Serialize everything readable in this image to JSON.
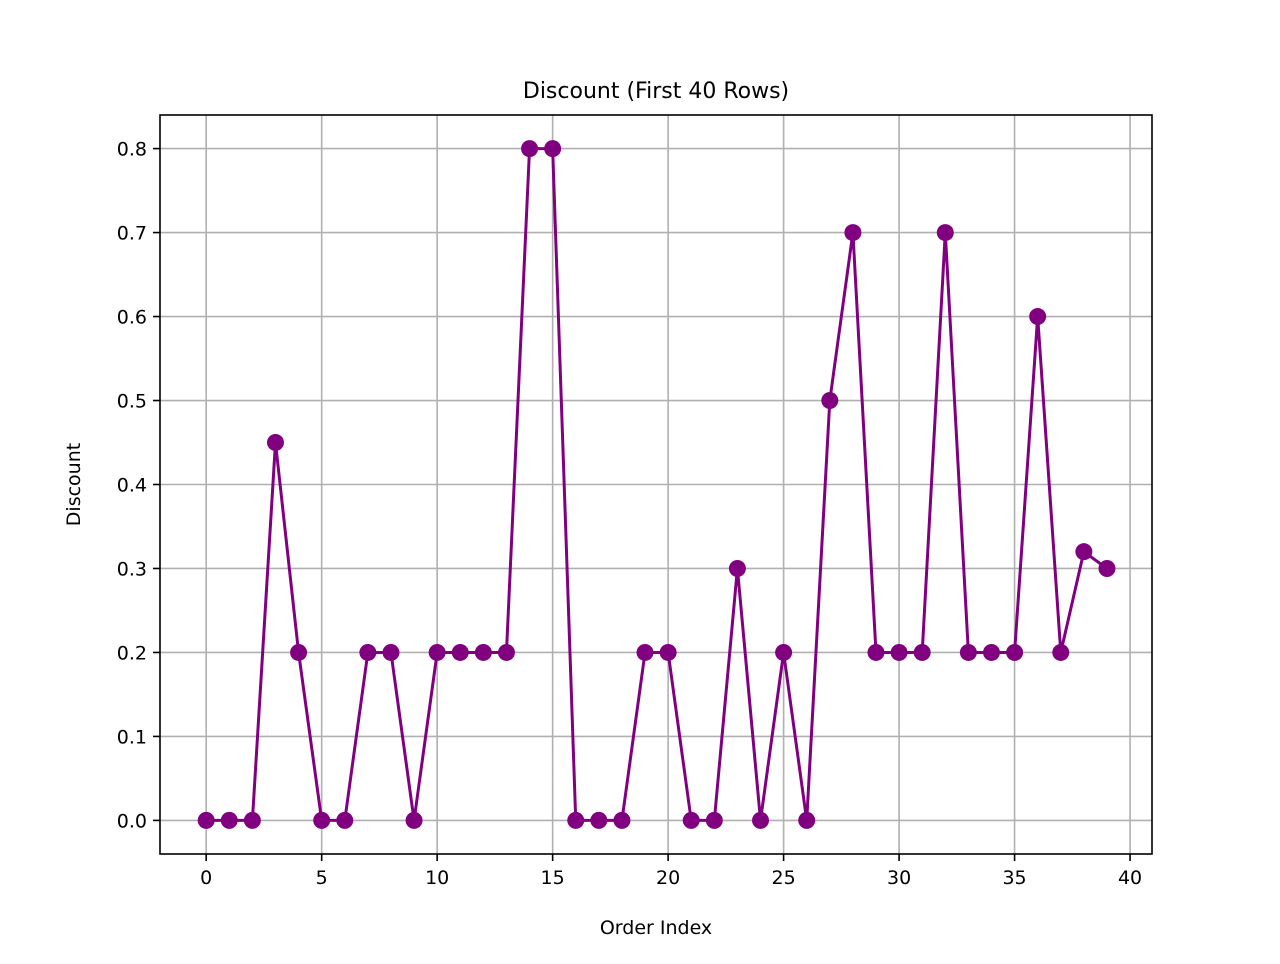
{
  "chart_data": {
    "type": "line",
    "title": "Discount (First 40 Rows)",
    "xlabel": "Order Index",
    "ylabel": "Discount",
    "xlim": [
      -2,
      40.95
    ],
    "ylim": [
      -0.04,
      0.84
    ],
    "x_ticks": [
      0,
      5,
      10,
      15,
      20,
      25,
      30,
      35,
      40
    ],
    "y_ticks": [
      0.0,
      0.1,
      0.2,
      0.3,
      0.4,
      0.5,
      0.6,
      0.7,
      0.8
    ],
    "x_tick_labels": [
      "0",
      "5",
      "10",
      "15",
      "20",
      "25",
      "30",
      "35",
      "40"
    ],
    "y_tick_labels": [
      "0.0",
      "0.1",
      "0.2",
      "0.3",
      "0.4",
      "0.5",
      "0.6",
      "0.7",
      "0.8"
    ],
    "grid": true,
    "series": [
      {
        "color": "#800080",
        "marker": "circle",
        "x": [
          0,
          1,
          2,
          3,
          4,
          5,
          6,
          7,
          8,
          9,
          10,
          11,
          12,
          13,
          14,
          15,
          16,
          17,
          18,
          19,
          20,
          21,
          22,
          23,
          24,
          25,
          26,
          27,
          28,
          29,
          30,
          31,
          32,
          33,
          34,
          35,
          36,
          37,
          38,
          39
        ],
        "values": [
          0.0,
          0.0,
          0.0,
          0.45,
          0.2,
          0.0,
          0.0,
          0.2,
          0.2,
          0.0,
          0.2,
          0.2,
          0.2,
          0.2,
          0.8,
          0.8,
          0.0,
          0.0,
          0.0,
          0.2,
          0.2,
          0.0,
          0.0,
          0.3,
          0.0,
          0.2,
          0.0,
          0.5,
          0.7,
          0.2,
          0.2,
          0.2,
          0.7,
          0.2,
          0.2,
          0.2,
          0.6,
          0.2,
          0.32,
          0.3
        ]
      }
    ]
  }
}
